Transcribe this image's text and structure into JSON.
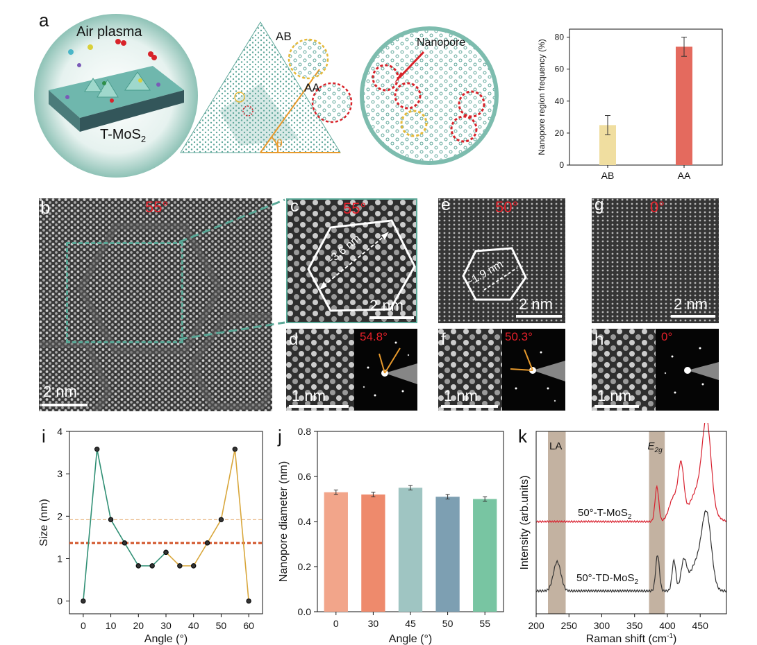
{
  "labels": {
    "a": "a",
    "b": "b",
    "c": "c",
    "d": "d",
    "e": "e",
    "f": "f",
    "g": "g",
    "h": "h",
    "i": "i",
    "j": "j",
    "k": "k"
  },
  "panel_a": {
    "air_plasma": "Air plasma",
    "t_mos2_main": "T-MoS",
    "t_mos2_sub": "2",
    "ab": "AB",
    "aa": "AA",
    "theta": "θ",
    "nanopore": "Nanopore",
    "colors": {
      "teal": "#5fa79a",
      "ab_ring": "#e5b93a",
      "aa_ring": "#d8232a",
      "orange": "#e89a2c"
    }
  },
  "stem": {
    "b": {
      "angle": "55°",
      "scale": "2 nm"
    },
    "c": {
      "angle": "55°",
      "scale": "2 nm",
      "measure": "~3.6 nm"
    },
    "e": {
      "angle": "50°",
      "scale": "2 nm",
      "measure": "~1.9 nm"
    },
    "g": {
      "angle": "0°",
      "scale": "2 nm"
    },
    "d": {
      "angle": "54.8°",
      "scale": "1 nm"
    },
    "f": {
      "angle": "50.3°",
      "scale": "1 nm"
    },
    "h": {
      "angle": "0°",
      "scale": "1 nm"
    }
  },
  "chart_data": [
    {
      "id": "a-bar",
      "type": "bar",
      "categories": [
        "AB",
        "AA"
      ],
      "values": [
        25,
        74
      ],
      "errors": [
        6,
        6
      ],
      "colors": [
        "#f0dea0",
        "#e46a5e"
      ],
      "ylabel": "Nanopore region frequency (%)",
      "ylim": [
        0,
        85
      ],
      "yticks": [
        0,
        20,
        40,
        60,
        80
      ]
    },
    {
      "id": "i",
      "type": "line",
      "xlabel": "Angle (°)",
      "ylabel": "Size (nm)",
      "xlim": [
        -5,
        65
      ],
      "ylim": [
        -0.3,
        4
      ],
      "xticks": [
        0,
        10,
        20,
        30,
        40,
        50,
        60
      ],
      "yticks": [
        0,
        1,
        2,
        3,
        4
      ],
      "series": [
        {
          "color": "#2f8f74",
          "x": [
            0,
            5,
            10,
            15,
            20,
            25,
            30
          ],
          "y": [
            0,
            3.58,
            1.92,
            1.37,
            0.83,
            0.83,
            1.15
          ]
        },
        {
          "color": "#d8a63a",
          "x": [
            30,
            35,
            40,
            45,
            50,
            55,
            60
          ],
          "y": [
            1.15,
            0.83,
            0.83,
            1.37,
            1.92,
            3.58,
            0
          ]
        }
      ],
      "hlines": [
        {
          "y": 1.92,
          "color": "#e8b07a",
          "width": 1.2
        },
        {
          "y": 1.37,
          "color": "#d2552a",
          "width": 3
        }
      ]
    },
    {
      "id": "j",
      "type": "bar",
      "categories": [
        "0",
        "30",
        "45",
        "50",
        "55"
      ],
      "values": [
        0.53,
        0.52,
        0.55,
        0.51,
        0.5
      ],
      "errors": [
        0.01,
        0.01,
        0.01,
        0.01,
        0.01
      ],
      "colors": [
        "#f2a58a",
        "#ee8a6c",
        "#9fc5c2",
        "#7d9fb2",
        "#78c5a2"
      ],
      "xlabel": "Angle (°)",
      "ylabel": "Nanopore diameter (nm)",
      "ylim": [
        0,
        0.8
      ],
      "yticks": [
        0.0,
        0.2,
        0.4,
        0.6,
        0.8
      ],
      "ytick_labels": [
        "0.0",
        "0.2",
        "0.4",
        "0.6",
        "0.8"
      ]
    },
    {
      "id": "k",
      "type": "line",
      "xlabel_main": "Raman shift (cm",
      "xlabel_sup": "-1",
      "xlabel_end": ")",
      "ylabel": "Intensity (arb.units)",
      "xlim": [
        200,
        490
      ],
      "xticks": [
        200,
        250,
        300,
        350,
        400,
        450
      ],
      "bands": [
        {
          "from": 218,
          "to": 245,
          "label": "LA"
        },
        {
          "from": 372,
          "to": 396,
          "label_main": "E",
          "label_sub": "2g"
        }
      ],
      "series": [
        {
          "name_main": "50°-T-MoS",
          "name_sub": "2",
          "color": "#d8202e"
        },
        {
          "name_main": "50°-TD-MoS",
          "name_sub": "2",
          "color": "#333333"
        }
      ]
    }
  ]
}
